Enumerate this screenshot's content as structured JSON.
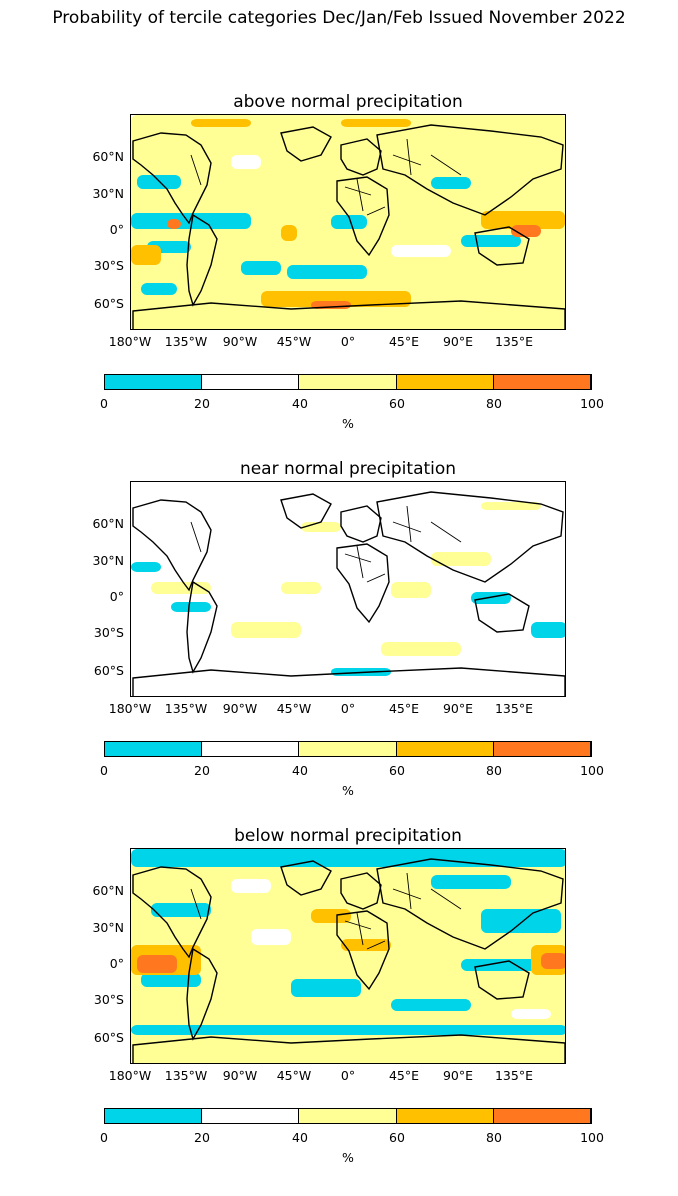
{
  "figure_title": "Probability of tercile categories Dec/Jan/Feb Issued November 2022",
  "panels": [
    {
      "title": "above normal precipitation",
      "variant": "above"
    },
    {
      "title": "near normal precipitation",
      "variant": "near"
    },
    {
      "title": "below normal precipitation",
      "variant": "below"
    }
  ],
  "lat_labels": [
    "60°N",
    "30°N",
    "0°",
    "30°S",
    "60°S"
  ],
  "lon_labels": [
    "180°W",
    "135°W",
    "90°W",
    "45°W",
    "0°",
    "45°E",
    "90°E",
    "135°E"
  ],
  "colorbar": {
    "ticks": [
      "0",
      "20",
      "40",
      "60",
      "80",
      "100"
    ],
    "label": "%",
    "colors": [
      "#00d4e8",
      "#ffffff",
      "#ffff96",
      "#ffc000",
      "#ff7820"
    ]
  }
}
